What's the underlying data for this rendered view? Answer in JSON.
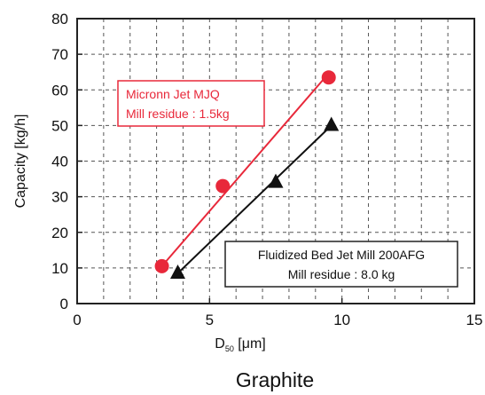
{
  "chart_data": {
    "type": "scatter",
    "caption": "Graphite",
    "xlabel_main": "D",
    "xlabel_sub": "50",
    "xlabel_unit": " [μm]",
    "ylabel": "Capacity [kg/h]",
    "xlim": [
      0,
      15
    ],
    "ylim": [
      0,
      80
    ],
    "x_ticks": [
      "0",
      "5",
      "10",
      "15"
    ],
    "y_ticks": [
      "0",
      "10",
      "20",
      "30",
      "40",
      "50",
      "60",
      "70",
      "80"
    ],
    "grid": true,
    "series": [
      {
        "name_line1": "Micronn Jet  MJQ",
        "name_line2": "Mill residue : 1.5kg",
        "color": "#e8283a",
        "marker": "circle",
        "points": [
          {
            "x": 3.2,
            "y": 10.5
          },
          {
            "x": 5.5,
            "y": 33
          },
          {
            "x": 9.5,
            "y": 63.5
          }
        ],
        "fit": [
          [
            3.2,
            10.5
          ],
          [
            9.4,
            63.8
          ]
        ]
      },
      {
        "name_line1": "Fluidized Bed Jet Mill 200AFG",
        "name_line2": "Mill residue : 8.0 kg",
        "color": "#111111",
        "marker": "triangle",
        "points": [
          {
            "x": 3.8,
            "y": 8.5
          },
          {
            "x": 7.5,
            "y": 34
          },
          {
            "x": 9.6,
            "y": 50
          }
        ],
        "fit": [
          [
            3.8,
            8.5
          ],
          [
            9.6,
            50
          ]
        ]
      }
    ]
  }
}
